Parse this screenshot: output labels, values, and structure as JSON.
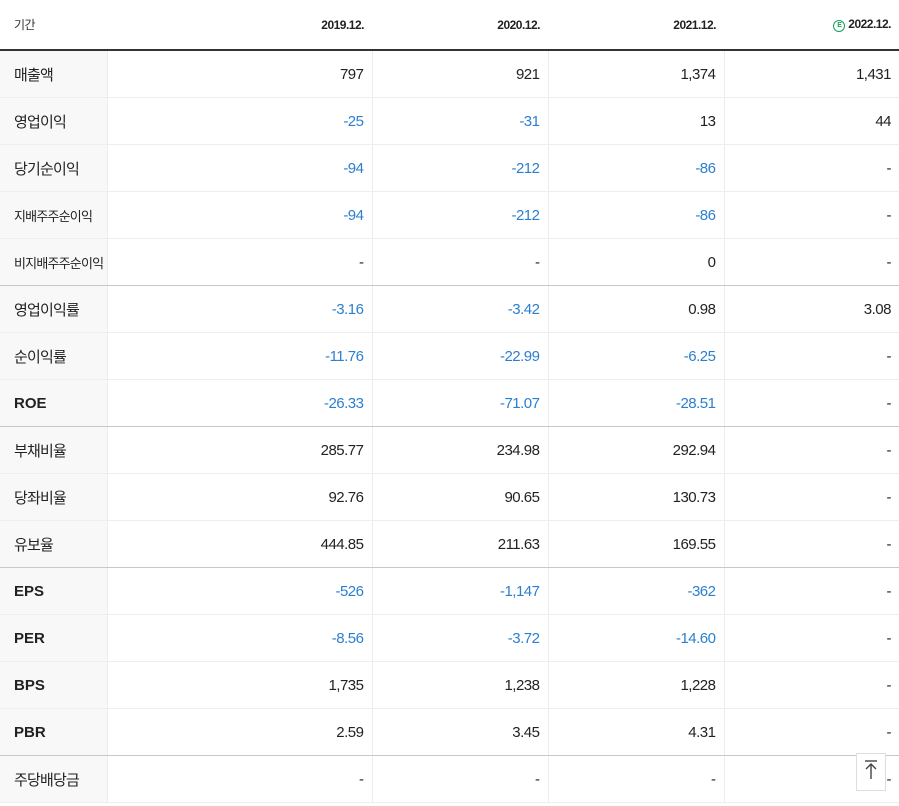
{
  "table": {
    "period_label": "기간",
    "columns": [
      {
        "label": "2019.12.",
        "estimate": false
      },
      {
        "label": "2020.12.",
        "estimate": false
      },
      {
        "label": "2021.12.",
        "estimate": false
      },
      {
        "label": "2022.12.",
        "estimate": true
      }
    ],
    "estimate_icon_text": "E",
    "rows": [
      {
        "label": "매출액",
        "values": [
          "797",
          "921",
          "1,374",
          "1,431"
        ]
      },
      {
        "label": "영업이익",
        "values": [
          "-25",
          "-31",
          "13",
          "44"
        ]
      },
      {
        "label": "당기순이익",
        "values": [
          "-94",
          "-212",
          "-86",
          "-"
        ]
      },
      {
        "label": "지배주주순이익",
        "values": [
          "-94",
          "-212",
          "-86",
          "-"
        ]
      },
      {
        "label": "비지배주주순이익",
        "values": [
          "-",
          "-",
          "0",
          "-"
        ]
      },
      {
        "label": "영업이익률",
        "values": [
          "-3.16",
          "-3.42",
          "0.98",
          "3.08"
        ]
      },
      {
        "label": "순이익률",
        "values": [
          "-11.76",
          "-22.99",
          "-6.25",
          "-"
        ]
      },
      {
        "label": "ROE",
        "values": [
          "-26.33",
          "-71.07",
          "-28.51",
          "-"
        ]
      },
      {
        "label": "부채비율",
        "values": [
          "285.77",
          "234.98",
          "292.94",
          "-"
        ]
      },
      {
        "label": "당좌비율",
        "values": [
          "92.76",
          "90.65",
          "130.73",
          "-"
        ]
      },
      {
        "label": "유보율",
        "values": [
          "444.85",
          "211.63",
          "169.55",
          "-"
        ]
      },
      {
        "label": "EPS",
        "values": [
          "-526",
          "-1,147",
          "-362",
          "-"
        ]
      },
      {
        "label": "PER",
        "values": [
          "-8.56",
          "-3.72",
          "-14.60",
          "-"
        ]
      },
      {
        "label": "BPS",
        "values": [
          "1,735",
          "1,238",
          "1,228",
          "-"
        ]
      },
      {
        "label": "PBR",
        "values": [
          "2.59",
          "3.45",
          "4.31",
          "-"
        ]
      },
      {
        "label": "주당배당금",
        "values": [
          "-",
          "-",
          "-",
          "-"
        ]
      }
    ]
  },
  "colors": {
    "negative": "#2b7fcf",
    "text": "#222222",
    "label_bg": "#f8f8f8",
    "estimate_icon": "#18a05e"
  },
  "icons": {
    "scroll_top": "arrow-up-to-line-icon",
    "estimate": "circled-e-icon"
  }
}
